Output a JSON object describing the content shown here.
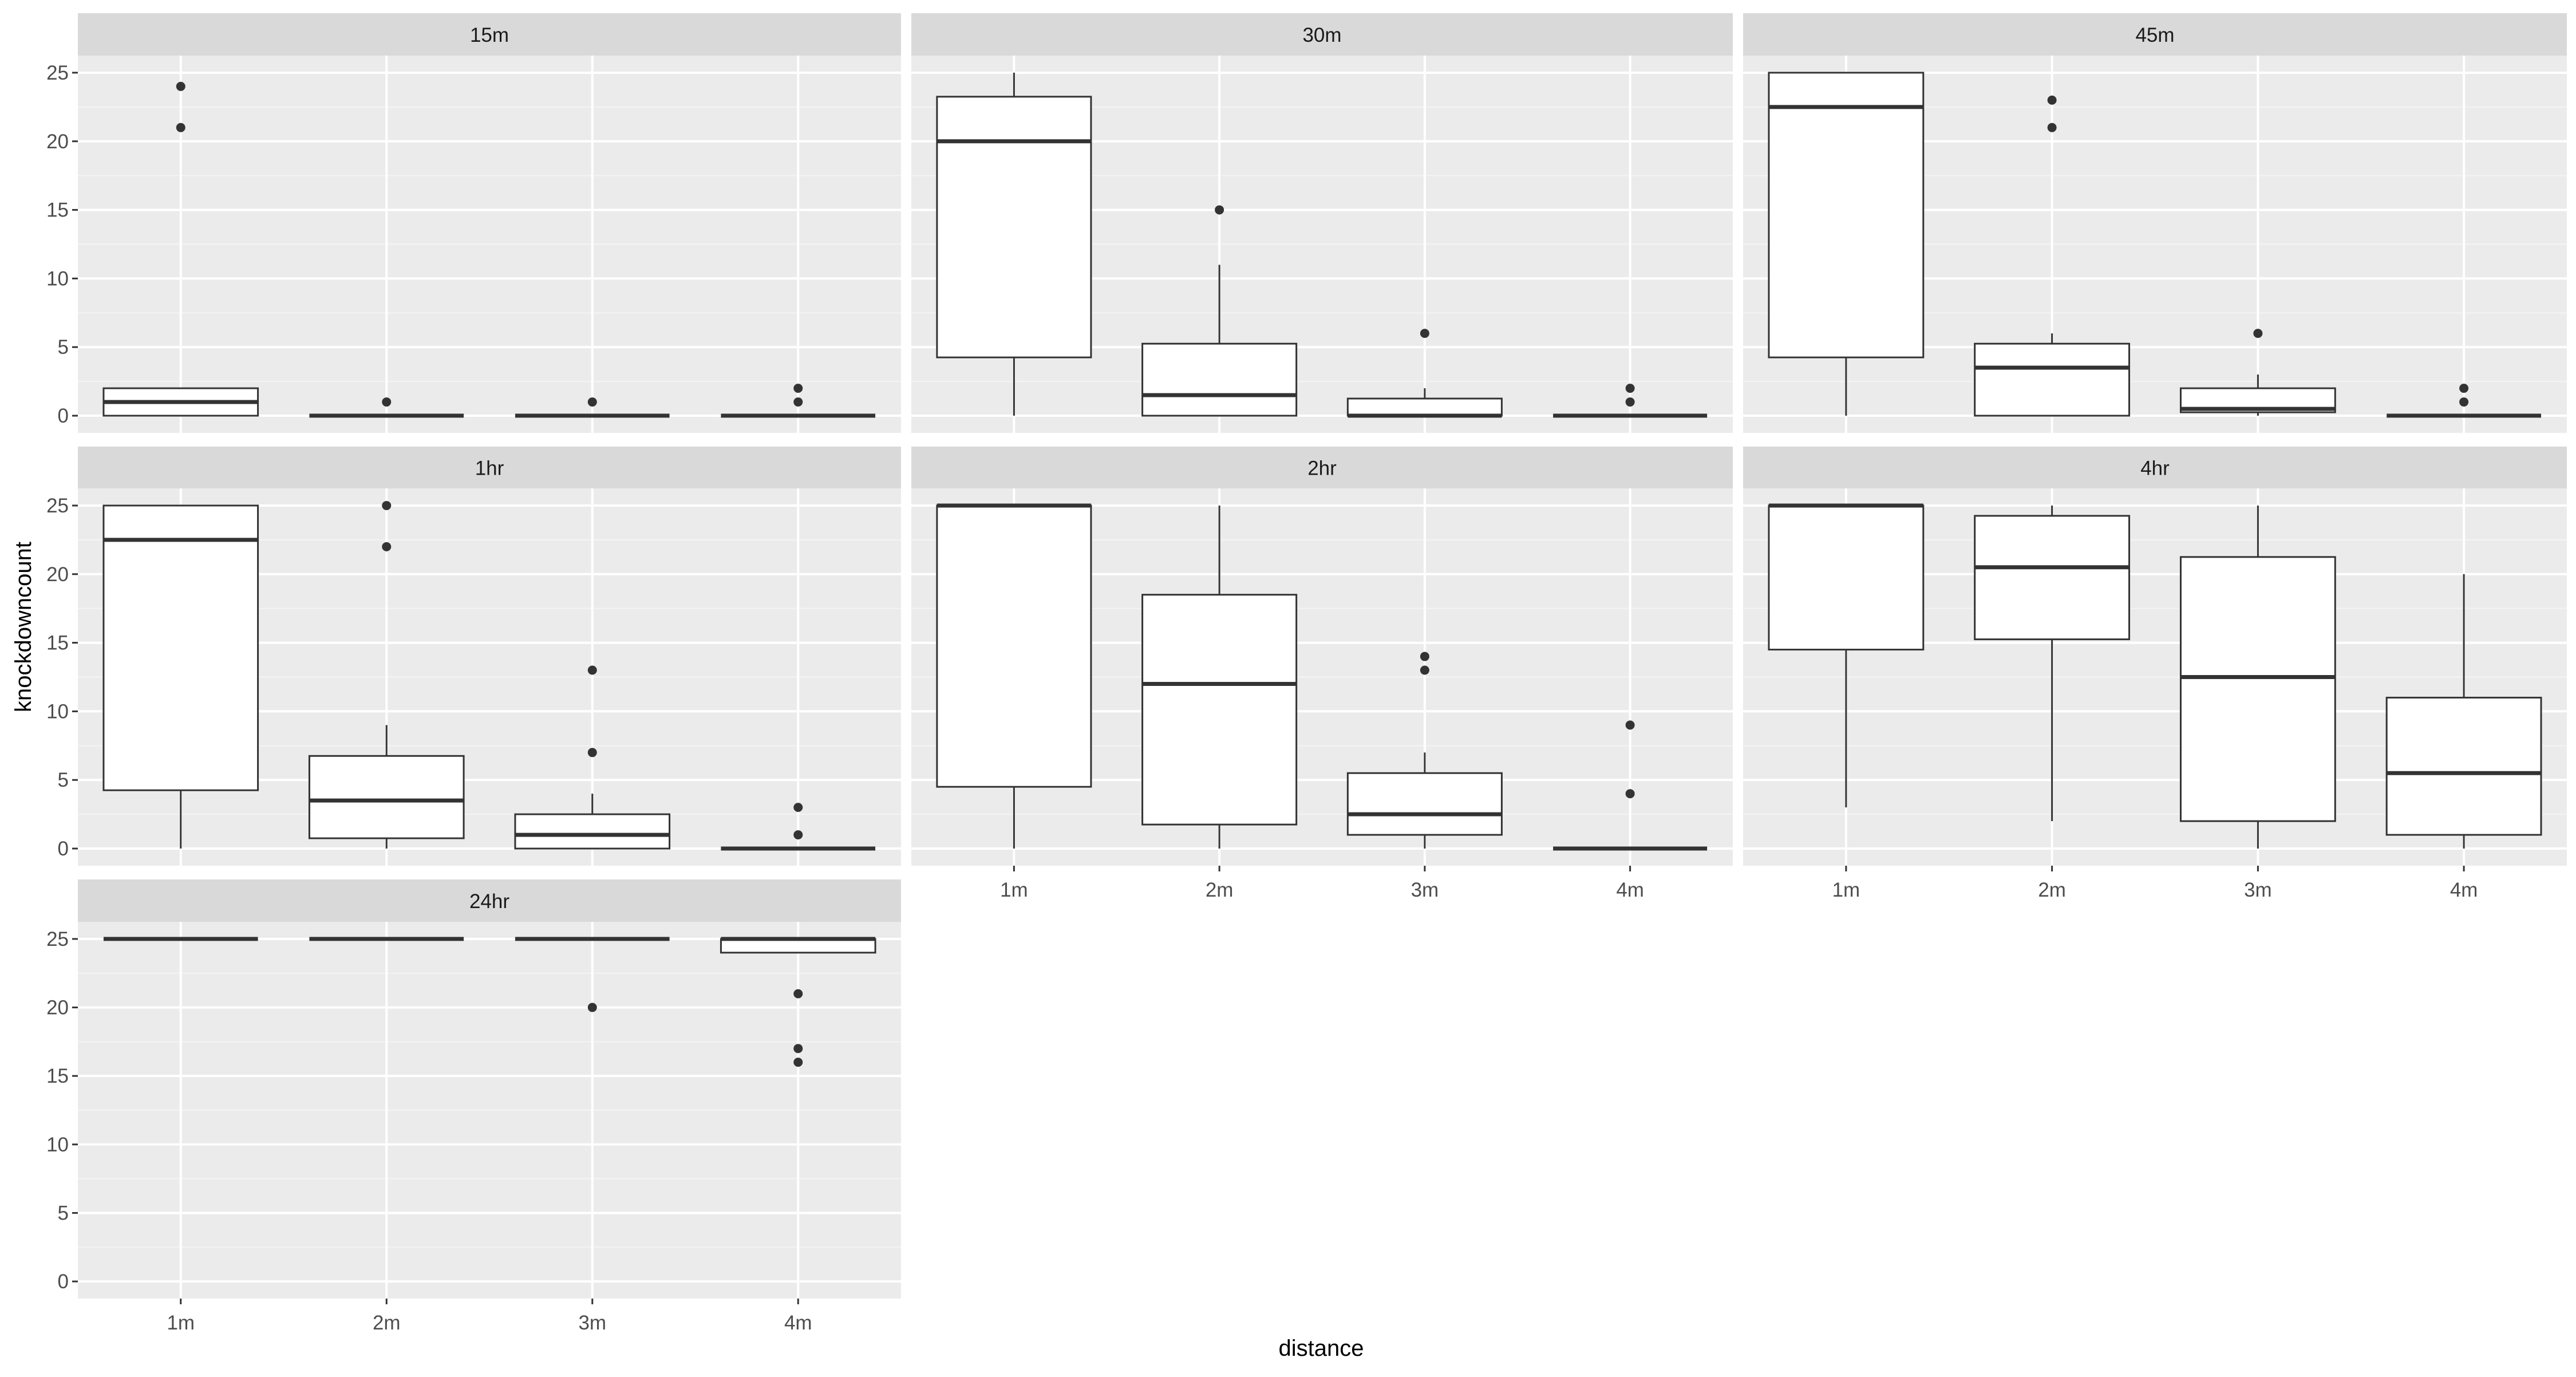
{
  "chart_data": {
    "type": "boxplot",
    "xlabel": "distance",
    "ylabel": "knockdowncount",
    "categories": [
      "1m",
      "2m",
      "3m",
      "4m"
    ],
    "ylim": [
      -1.25,
      26.25
    ],
    "yticks": [
      0,
      5,
      10,
      15,
      20,
      25
    ],
    "grid": true,
    "panels": [
      {
        "label": "15m",
        "boxes": [
          {
            "category": "1m",
            "lower": 0,
            "q1": 0,
            "median": 1,
            "q3": 2,
            "upper": 2,
            "outliers": [
              21,
              24
            ]
          },
          {
            "category": "2m",
            "lower": 0,
            "q1": 0,
            "median": 0,
            "q3": 0,
            "upper": 0,
            "outliers": [
              1
            ]
          },
          {
            "category": "3m",
            "lower": 0,
            "q1": 0,
            "median": 0,
            "q3": 0,
            "upper": 0,
            "outliers": [
              1
            ]
          },
          {
            "category": "4m",
            "lower": 0,
            "q1": 0,
            "median": 0,
            "q3": 0,
            "upper": 0,
            "outliers": [
              1,
              2
            ]
          }
        ]
      },
      {
        "label": "30m",
        "boxes": [
          {
            "category": "1m",
            "lower": 0,
            "q1": 4.25,
            "median": 20,
            "q3": 23.25,
            "upper": 25,
            "outliers": []
          },
          {
            "category": "2m",
            "lower": 0,
            "q1": 0,
            "median": 1.5,
            "q3": 5.25,
            "upper": 11,
            "outliers": [
              15
            ]
          },
          {
            "category": "3m",
            "lower": 0,
            "q1": 0,
            "median": 0,
            "q3": 1.25,
            "upper": 2,
            "outliers": [
              6
            ]
          },
          {
            "category": "4m",
            "lower": 0,
            "q1": 0,
            "median": 0,
            "q3": 0,
            "upper": 0,
            "outliers": [
              1,
              2
            ]
          }
        ]
      },
      {
        "label": "45m",
        "boxes": [
          {
            "category": "1m",
            "lower": 0,
            "q1": 4.25,
            "median": 22.5,
            "q3": 25,
            "upper": 25,
            "outliers": []
          },
          {
            "category": "2m",
            "lower": 0,
            "q1": 0,
            "median": 3.5,
            "q3": 5.25,
            "upper": 6,
            "outliers": [
              21,
              23
            ]
          },
          {
            "category": "3m",
            "lower": 0,
            "q1": 0.25,
            "median": 0.5,
            "q3": 2,
            "upper": 3,
            "outliers": [
              6
            ]
          },
          {
            "category": "4m",
            "lower": 0,
            "q1": 0,
            "median": 0,
            "q3": 0,
            "upper": 0,
            "outliers": [
              1,
              2
            ]
          }
        ]
      },
      {
        "label": "1hr",
        "boxes": [
          {
            "category": "1m",
            "lower": 0,
            "q1": 4.25,
            "median": 22.5,
            "q3": 25,
            "upper": 25,
            "outliers": []
          },
          {
            "category": "2m",
            "lower": 0,
            "q1": 0.75,
            "median": 3.5,
            "q3": 6.75,
            "upper": 9,
            "outliers": [
              22,
              25
            ]
          },
          {
            "category": "3m",
            "lower": 0,
            "q1": 0,
            "median": 1,
            "q3": 2.5,
            "upper": 4,
            "outliers": [
              7,
              13
            ]
          },
          {
            "category": "4m",
            "lower": 0,
            "q1": 0,
            "median": 0,
            "q3": 0,
            "upper": 0,
            "outliers": [
              1,
              3
            ]
          }
        ]
      },
      {
        "label": "2hr",
        "boxes": [
          {
            "category": "1m",
            "lower": 0,
            "q1": 4.5,
            "median": 25,
            "q3": 25,
            "upper": 25,
            "outliers": []
          },
          {
            "category": "2m",
            "lower": 0,
            "q1": 1.75,
            "median": 12,
            "q3": 18.5,
            "upper": 25,
            "outliers": []
          },
          {
            "category": "3m",
            "lower": 0,
            "q1": 1,
            "median": 2.5,
            "q3": 5.5,
            "upper": 7,
            "outliers": [
              13,
              14
            ]
          },
          {
            "category": "4m",
            "lower": 0,
            "q1": 0,
            "median": 0,
            "q3": 0,
            "upper": 0,
            "outliers": [
              4,
              9
            ]
          }
        ]
      },
      {
        "label": "4hr",
        "boxes": [
          {
            "category": "1m",
            "lower": 3,
            "q1": 14.5,
            "median": 25,
            "q3": 25,
            "upper": 25,
            "outliers": []
          },
          {
            "category": "2m",
            "lower": 2,
            "q1": 15.25,
            "median": 20.5,
            "q3": 24.25,
            "upper": 25,
            "outliers": []
          },
          {
            "category": "3m",
            "lower": 0,
            "q1": 2,
            "median": 12.5,
            "q3": 21.25,
            "upper": 25,
            "outliers": []
          },
          {
            "category": "4m",
            "lower": 0,
            "q1": 1,
            "median": 5.5,
            "q3": 11,
            "upper": 20,
            "outliers": []
          }
        ]
      },
      {
        "label": "24hr",
        "boxes": [
          {
            "category": "1m",
            "lower": 25,
            "q1": 25,
            "median": 25,
            "q3": 25,
            "upper": 25,
            "outliers": []
          },
          {
            "category": "2m",
            "lower": 25,
            "q1": 25,
            "median": 25,
            "q3": 25,
            "upper": 25,
            "outliers": []
          },
          {
            "category": "3m",
            "lower": 25,
            "q1": 25,
            "median": 25,
            "q3": 25,
            "upper": 25,
            "outliers": [
              20
            ]
          },
          {
            "category": "4m",
            "lower": 24,
            "q1": 24,
            "median": 25,
            "q3": 25,
            "upper": 25,
            "outliers": [
              16,
              17,
              21
            ]
          }
        ]
      }
    ]
  },
  "colors": {
    "panel_bg": "#ebebeb",
    "strip_bg": "#d9d9d9",
    "grid_major": "#ffffff",
    "grid_minor": "#f4f4f4",
    "box_fill": "#ffffff",
    "box_line": "#333333",
    "tick_text": "#4d4d4d",
    "axis_title": "#000000"
  }
}
